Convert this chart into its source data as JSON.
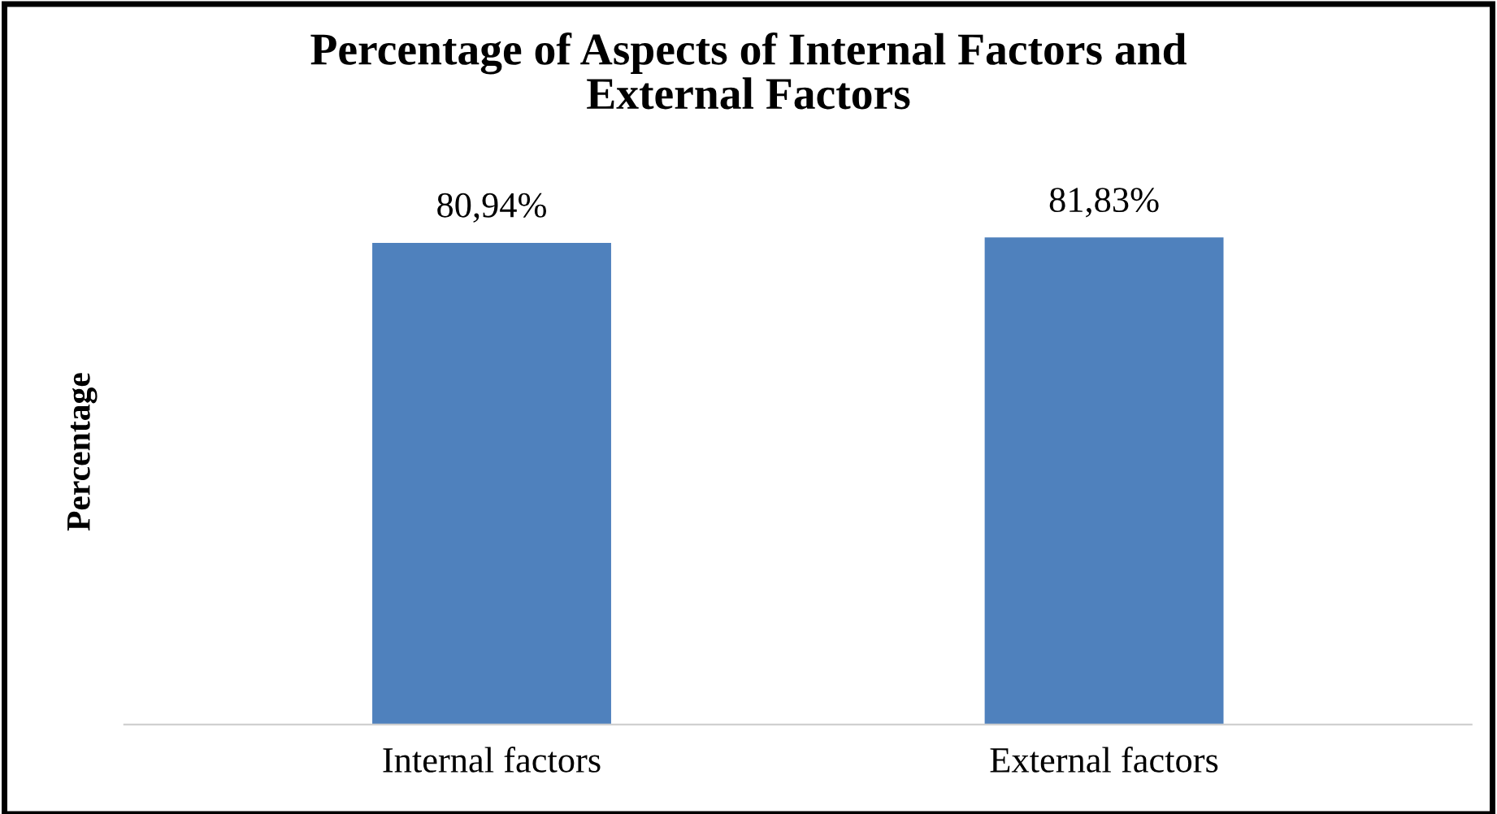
{
  "chart_data": {
    "type": "bar",
    "title": "Percentage of Aspects of Internal Factors and\nExternal Factors",
    "ylabel": "Percentage",
    "categories": [
      "Internal factors",
      "External factors"
    ],
    "values": [
      80.94,
      81.83
    ],
    "value_labels": [
      "80,94%",
      "81,83%"
    ],
    "color": "#4f81bd",
    "tick_labels": "x",
    "grid": false,
    "legend": false
  }
}
